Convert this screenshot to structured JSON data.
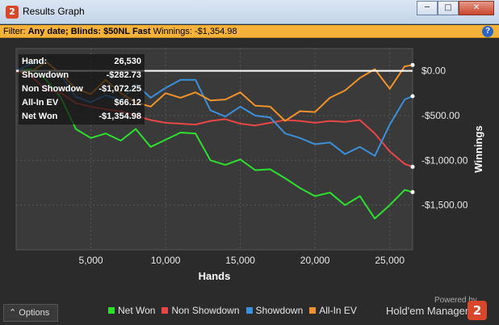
{
  "window": {
    "title": "Results Graph",
    "minimize": "─",
    "maximize": "□",
    "close": "✕",
    "app_icon": "2"
  },
  "filter": {
    "prefix": "Filter:",
    "text": "Any date; Blinds: $50NL Fast",
    "winnings": "Winnings: -$1,354.98",
    "help": "?"
  },
  "info": [
    {
      "label": "Hand:",
      "value": "26,530"
    },
    {
      "label": "Showdown",
      "value": "-$282.73"
    },
    {
      "label": "Non Showdow",
      "value": "-$1,072.25"
    },
    {
      "label": "All-In EV",
      "value": "$66.12"
    },
    {
      "label": "Net Won",
      "value": "-$1,354.98"
    }
  ],
  "chart_data": {
    "type": "line",
    "xlabel": "Hands",
    "ylabel": "Winnings",
    "xlim": [
      0,
      26530
    ],
    "ylim": [
      -2000,
      250
    ],
    "x_ticks": [
      5000,
      10000,
      15000,
      20000,
      25000
    ],
    "x_tick_labels": [
      "5,000",
      "10,000",
      "15,000",
      "20,000",
      "25,000"
    ],
    "y_ticks": [
      0,
      -500,
      -1000,
      -1500
    ],
    "y_tick_labels": [
      "$0.00",
      "-$500.00",
      "-$1,000.00",
      "-$1,500.00"
    ],
    "colors": {
      "Net Won": "#2ee02e",
      "Non Showdown": "#e84646",
      "Showdown": "#3c8fd8",
      "All-In EV": "#f0922a"
    },
    "x": [
      0,
      1000,
      2000,
      3000,
      4000,
      5000,
      6000,
      7000,
      8000,
      9000,
      10000,
      11000,
      12000,
      13000,
      14000,
      15000,
      16000,
      17000,
      18000,
      19000,
      20000,
      21000,
      22000,
      23000,
      24000,
      25000,
      26000,
      26530
    ],
    "series": [
      {
        "name": "Net Won",
        "values": [
          0,
          20,
          -100,
          -300,
          -650,
          -750,
          -700,
          -780,
          -650,
          -850,
          -770,
          -690,
          -700,
          -1000,
          -1050,
          -990,
          -1110,
          -1100,
          -1200,
          -1310,
          -1400,
          -1360,
          -1500,
          -1400,
          -1650,
          -1500,
          -1330,
          -1355
        ]
      },
      {
        "name": "Non Showdown",
        "values": [
          0,
          -60,
          -210,
          -250,
          -360,
          -400,
          -430,
          -450,
          -500,
          -550,
          -580,
          -590,
          -600,
          -560,
          -540,
          -590,
          -610,
          -580,
          -550,
          -560,
          -580,
          -560,
          -570,
          -550,
          -700,
          -900,
          -1040,
          -1072
        ]
      },
      {
        "name": "Showdown",
        "values": [
          0,
          80,
          110,
          -50,
          -290,
          -350,
          -270,
          -330,
          -150,
          -300,
          -190,
          -100,
          -100,
          -440,
          -510,
          -400,
          -500,
          -520,
          -700,
          -750,
          -820,
          -800,
          -930,
          -850,
          -950,
          -600,
          -320,
          -283
        ]
      },
      {
        "name": "All-In EV",
        "values": [
          0,
          -10,
          100,
          -30,
          -200,
          -260,
          -100,
          -250,
          -350,
          -400,
          -250,
          -300,
          -240,
          -330,
          -320,
          -240,
          -390,
          -400,
          -560,
          -450,
          -460,
          -300,
          -220,
          -80,
          20,
          -200,
          50,
          66
        ]
      }
    ]
  },
  "legend_title": "",
  "options_label": "Options",
  "options_icon": "chevron-up-icon",
  "powered_by": "Powered by",
  "brand_name": "Hold'em Manager",
  "brand_logo": "2"
}
